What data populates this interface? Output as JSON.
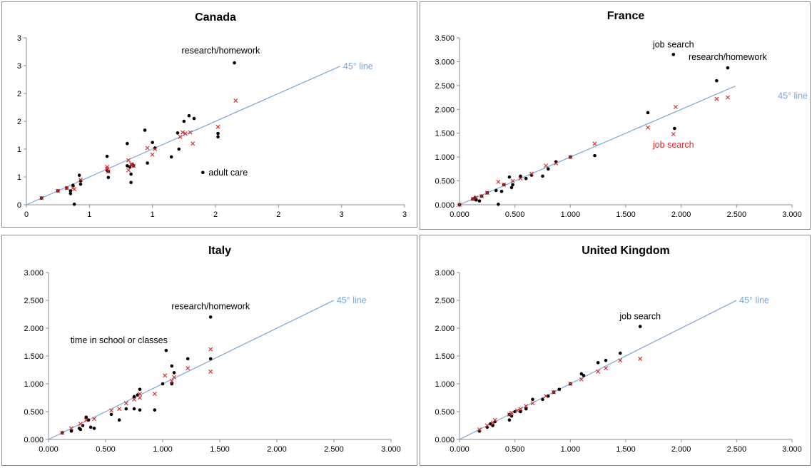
{
  "colors": {
    "points_dot": "#000000",
    "points_cross": "#d62728",
    "reference_line": "#7aa6d8",
    "axis": "#8c8c8c",
    "annot_red": "#d62728"
  },
  "chart_data": [
    {
      "type": "scatter",
      "title": "Canada",
      "xlabel": "",
      "ylabel": "",
      "xlim": [
        0,
        3
      ],
      "ylim": [
        0,
        3
      ],
      "x_tick_labels": [
        "0",
        "1",
        "1",
        "2",
        "2",
        "3",
        "3"
      ],
      "y_tick_labels": [
        "0",
        "1",
        "1",
        "2",
        "2",
        "3",
        "3"
      ],
      "reference_line_label": "45° line",
      "grid": false,
      "series": [
        {
          "marker": "dot",
          "points": [
            [
              0.12,
              0.12
            ],
            [
              0.25,
              0.25
            ],
            [
              0.32,
              0.3
            ],
            [
              0.35,
              0.25
            ],
            [
              0.35,
              0.2
            ],
            [
              0.37,
              0.35
            ],
            [
              0.38,
              0.01
            ],
            [
              0.42,
              0.53
            ],
            [
              0.43,
              0.43
            ],
            [
              0.43,
              0.37
            ],
            [
              0.64,
              0.87
            ],
            [
              0.64,
              0.62
            ],
            [
              0.65,
              0.6
            ],
            [
              0.65,
              0.49
            ],
            [
              0.8,
              1.1
            ],
            [
              0.8,
              0.7
            ],
            [
              0.82,
              0.68
            ],
            [
              0.83,
              0.55
            ],
            [
              0.83,
              0.4
            ],
            [
              0.84,
              0.72
            ],
            [
              0.85,
              0.7
            ],
            [
              0.94,
              1.34
            ],
            [
              0.96,
              0.75
            ],
            [
              1.0,
              1.12
            ],
            [
              1.02,
              1.02
            ],
            [
              1.15,
              0.86
            ],
            [
              1.2,
              1.29
            ],
            [
              1.21,
              1.0
            ],
            [
              1.25,
              1.5
            ],
            [
              1.29,
              1.6
            ],
            [
              1.33,
              1.55
            ],
            [
              1.4,
              0.58
            ],
            [
              1.52,
              1.22
            ],
            [
              1.52,
              1.28
            ],
            [
              1.65,
              2.55
            ]
          ]
        },
        {
          "marker": "cross",
          "points": [
            [
              0.12,
              0.12
            ],
            [
              0.25,
              0.25
            ],
            [
              0.32,
              0.3
            ],
            [
              0.37,
              0.3
            ],
            [
              0.38,
              0.28
            ],
            [
              0.43,
              0.45
            ],
            [
              0.64,
              0.68
            ],
            [
              0.64,
              0.65
            ],
            [
              0.65,
              0.6
            ],
            [
              0.81,
              0.8
            ],
            [
              0.81,
              0.62
            ],
            [
              0.83,
              0.73
            ],
            [
              0.84,
              0.72
            ],
            [
              0.85,
              0.7
            ],
            [
              0.96,
              1.02
            ],
            [
              1.0,
              0.9
            ],
            [
              1.02,
              1.0
            ],
            [
              1.22,
              1.22
            ],
            [
              1.24,
              1.3
            ],
            [
              1.26,
              1.28
            ],
            [
              1.3,
              1.3
            ],
            [
              1.32,
              1.1
            ],
            [
              1.52,
              1.4
            ],
            [
              1.66,
              1.87
            ]
          ]
        }
      ],
      "annotations": [
        {
          "text": "research/homework",
          "color": "black"
        },
        {
          "text": "adult care",
          "color": "black"
        }
      ]
    },
    {
      "type": "scatter",
      "title": "France",
      "xlabel": "",
      "ylabel": "",
      "xlim": [
        0,
        3
      ],
      "ylim": [
        0,
        3.5
      ],
      "x_tick_labels": [
        "0.000",
        "0.500",
        "1.000",
        "1.500",
        "2.000",
        "2.500",
        "3.000"
      ],
      "y_tick_labels": [
        "0.000",
        "0.500",
        "1.000",
        "1.500",
        "2.000",
        "2.500",
        "3.000",
        "3.500"
      ],
      "reference_line_label": "45° line",
      "grid": false,
      "series": [
        {
          "marker": "dot",
          "points": [
            [
              0.0,
              0.0
            ],
            [
              0.12,
              0.12
            ],
            [
              0.14,
              0.15
            ],
            [
              0.15,
              0.1
            ],
            [
              0.18,
              0.08
            ],
            [
              0.2,
              0.18
            ],
            [
              0.25,
              0.25
            ],
            [
              0.33,
              0.3
            ],
            [
              0.35,
              0.01
            ],
            [
              0.38,
              0.28
            ],
            [
              0.4,
              0.42
            ],
            [
              0.45,
              0.58
            ],
            [
              0.47,
              0.36
            ],
            [
              0.48,
              0.42
            ],
            [
              0.55,
              0.6
            ],
            [
              0.6,
              0.55
            ],
            [
              0.65,
              0.62
            ],
            [
              0.75,
              0.6
            ],
            [
              0.8,
              0.75
            ],
            [
              0.87,
              0.9
            ],
            [
              1.0,
              1.0
            ],
            [
              1.22,
              1.03
            ],
            [
              1.7,
              1.93
            ],
            [
              1.93,
              3.15
            ],
            [
              1.94,
              1.6
            ],
            [
              2.32,
              2.6
            ],
            [
              2.42,
              2.87
            ]
          ]
        },
        {
          "marker": "cross",
          "points": [
            [
              0.0,
              0.0
            ],
            [
              0.12,
              0.12
            ],
            [
              0.15,
              0.15
            ],
            [
              0.2,
              0.18
            ],
            [
              0.25,
              0.25
            ],
            [
              0.35,
              0.48
            ],
            [
              0.4,
              0.42
            ],
            [
              0.48,
              0.5
            ],
            [
              0.55,
              0.55
            ],
            [
              0.65,
              0.65
            ],
            [
              0.78,
              0.82
            ],
            [
              0.87,
              0.87
            ],
            [
              1.0,
              1.0
            ],
            [
              1.22,
              1.28
            ],
            [
              1.7,
              1.62
            ],
            [
              1.93,
              1.48
            ],
            [
              1.95,
              2.05
            ],
            [
              2.32,
              2.22
            ],
            [
              2.42,
              2.25
            ]
          ]
        }
      ],
      "annotations": [
        {
          "text": "job search",
          "color": "black"
        },
        {
          "text": "research/homework",
          "color": "black"
        },
        {
          "text": "job search",
          "color": "red"
        }
      ]
    },
    {
      "type": "scatter",
      "title": "Italy",
      "xlabel": "",
      "ylabel": "",
      "xlim": [
        0,
        3
      ],
      "ylim": [
        0,
        3
      ],
      "x_tick_labels": [
        "0.000",
        "0.500",
        "1.000",
        "1.500",
        "2.000",
        "2.500",
        "3.000"
      ],
      "y_tick_labels": [
        "0.000",
        "0.500",
        "1.000",
        "1.500",
        "2.000",
        "2.500",
        "3.000"
      ],
      "reference_line_label": "45° line",
      "grid": false,
      "series": [
        {
          "marker": "dot",
          "points": [
            [
              0.12,
              0.12
            ],
            [
              0.2,
              0.15
            ],
            [
              0.27,
              0.2
            ],
            [
              0.28,
              0.18
            ],
            [
              0.3,
              0.25
            ],
            [
              0.33,
              0.4
            ],
            [
              0.35,
              0.35
            ],
            [
              0.37,
              0.22
            ],
            [
              0.4,
              0.2
            ],
            [
              0.55,
              0.45
            ],
            [
              0.62,
              0.35
            ],
            [
              0.68,
              0.55
            ],
            [
              0.75,
              0.55
            ],
            [
              0.75,
              0.77
            ],
            [
              0.78,
              0.8
            ],
            [
              0.8,
              0.9
            ],
            [
              0.8,
              0.53
            ],
            [
              0.93,
              0.53
            ],
            [
              1.0,
              1.0
            ],
            [
              1.03,
              1.6
            ],
            [
              1.08,
              1.32
            ],
            [
              1.08,
              1.0
            ],
            [
              1.1,
              1.2
            ],
            [
              1.22,
              1.45
            ],
            [
              1.42,
              2.2
            ],
            [
              1.42,
              1.45
            ]
          ]
        },
        {
          "marker": "cross",
          "points": [
            [
              0.12,
              0.12
            ],
            [
              0.2,
              0.2
            ],
            [
              0.28,
              0.28
            ],
            [
              0.33,
              0.35
            ],
            [
              0.4,
              0.37
            ],
            [
              0.55,
              0.52
            ],
            [
              0.62,
              0.55
            ],
            [
              0.68,
              0.65
            ],
            [
              0.75,
              0.72
            ],
            [
              0.8,
              0.75
            ],
            [
              0.8,
              0.82
            ],
            [
              0.93,
              0.82
            ],
            [
              1.02,
              1.15
            ],
            [
              1.08,
              1.05
            ],
            [
              1.1,
              1.12
            ],
            [
              1.22,
              1.28
            ],
            [
              1.42,
              1.62
            ],
            [
              1.42,
              1.22
            ]
          ]
        }
      ],
      "annotations": [
        {
          "text": "research/homework",
          "color": "black"
        },
        {
          "text": "time in school or classes",
          "color": "black"
        }
      ]
    },
    {
      "type": "scatter",
      "title": "United Kingdom",
      "xlabel": "",
      "ylabel": "",
      "xlim": [
        0,
        3
      ],
      "ylim": [
        0,
        3
      ],
      "x_tick_labels": [
        "0.000",
        "0.500",
        "1.000",
        "1.500",
        "2.000",
        "2.500",
        "3.000"
      ],
      "y_tick_labels": [
        "0.000",
        "0.500",
        "1.000",
        "1.500",
        "2.000",
        "2.500",
        "3.000"
      ],
      "reference_line_label": "45° line",
      "grid": false,
      "series": [
        {
          "marker": "dot",
          "points": [
            [
              0.18,
              0.15
            ],
            [
              0.25,
              0.22
            ],
            [
              0.28,
              0.28
            ],
            [
              0.3,
              0.25
            ],
            [
              0.32,
              0.32
            ],
            [
              0.45,
              0.35
            ],
            [
              0.45,
              0.45
            ],
            [
              0.47,
              0.42
            ],
            [
              0.5,
              0.5
            ],
            [
              0.55,
              0.5
            ],
            [
              0.6,
              0.55
            ],
            [
              0.66,
              0.72
            ],
            [
              0.75,
              0.72
            ],
            [
              0.8,
              0.78
            ],
            [
              0.85,
              0.85
            ],
            [
              0.9,
              0.9
            ],
            [
              1.0,
              1.0
            ],
            [
              1.1,
              1.18
            ],
            [
              1.12,
              1.15
            ],
            [
              1.25,
              1.38
            ],
            [
              1.32,
              1.42
            ],
            [
              1.45,
              1.55
            ],
            [
              1.63,
              2.03
            ]
          ]
        },
        {
          "marker": "cross",
          "points": [
            [
              0.18,
              0.18
            ],
            [
              0.25,
              0.25
            ],
            [
              0.3,
              0.3
            ],
            [
              0.32,
              0.35
            ],
            [
              0.45,
              0.45
            ],
            [
              0.47,
              0.48
            ],
            [
              0.52,
              0.52
            ],
            [
              0.55,
              0.55
            ],
            [
              0.6,
              0.6
            ],
            [
              0.66,
              0.65
            ],
            [
              0.78,
              0.78
            ],
            [
              0.85,
              0.85
            ],
            [
              1.0,
              1.0
            ],
            [
              1.1,
              1.08
            ],
            [
              1.25,
              1.22
            ],
            [
              1.32,
              1.28
            ],
            [
              1.45,
              1.42
            ],
            [
              1.63,
              1.45
            ]
          ]
        }
      ],
      "annotations": [
        {
          "text": "job search",
          "color": "black"
        }
      ]
    }
  ]
}
